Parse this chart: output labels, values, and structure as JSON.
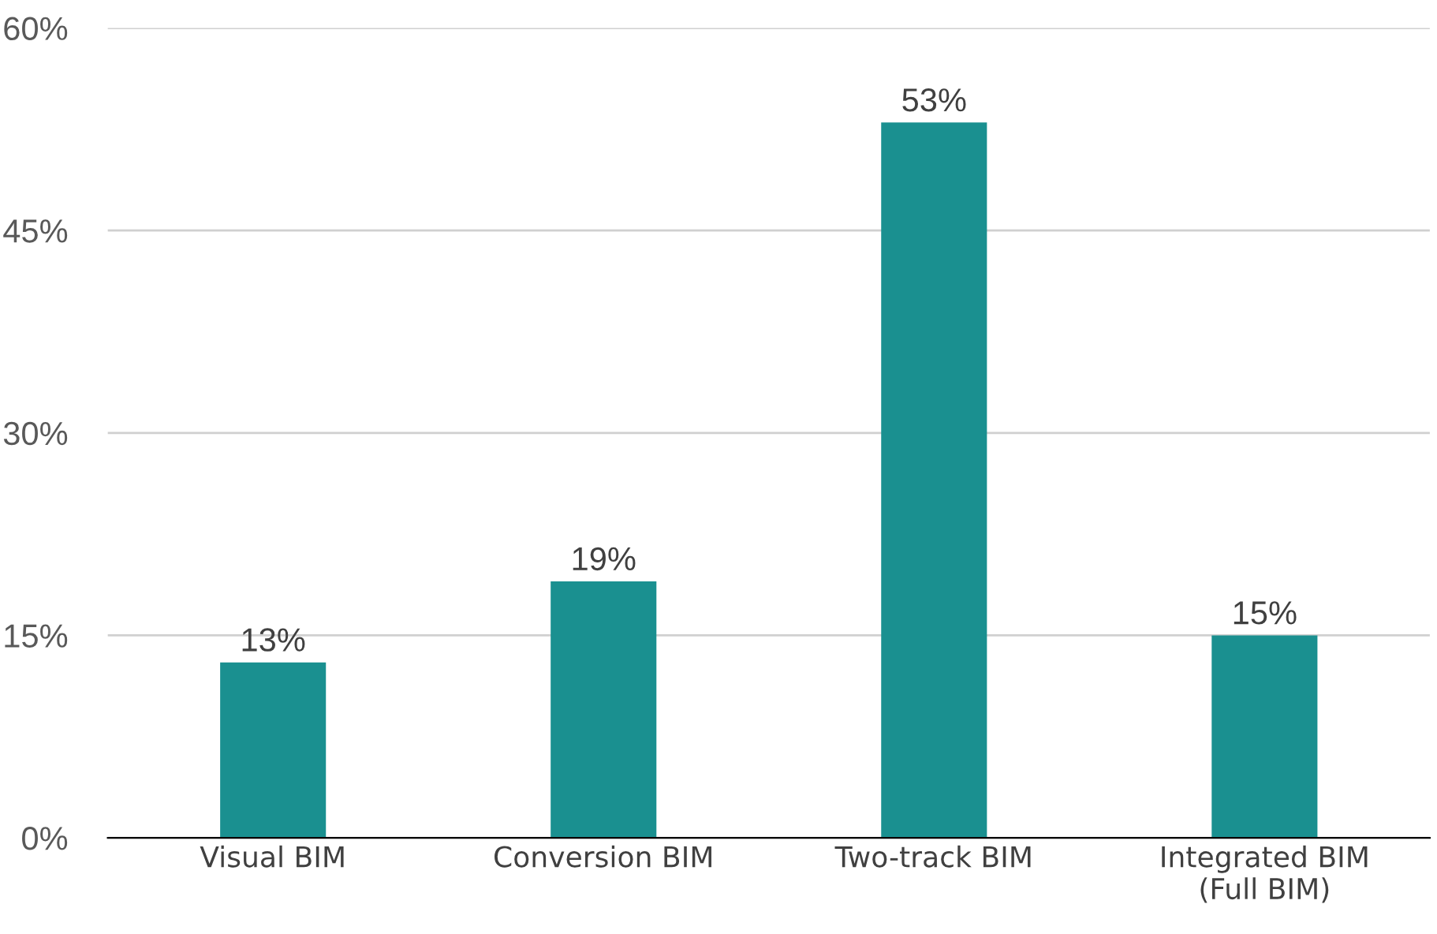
{
  "chart_data": {
    "type": "bar",
    "categories": [
      "Visual BIM",
      "Conversion BIM",
      "Two-track BIM",
      "Integrated BIM\n(Full BIM)"
    ],
    "values": [
      13,
      19,
      53,
      15
    ],
    "value_labels": [
      "13%",
      "19%",
      "53%",
      "15%"
    ],
    "color": "#1a9090",
    "ylim": [
      0,
      60
    ],
    "yticks": [
      {
        "value": 0,
        "label": "0%"
      },
      {
        "value": 15,
        "label": "15%"
      },
      {
        "value": 30,
        "label": "30%"
      },
      {
        "value": 45,
        "label": "45%"
      },
      {
        "value": 60,
        "label": "60%"
      }
    ],
    "grid": "y",
    "legend": false
  }
}
